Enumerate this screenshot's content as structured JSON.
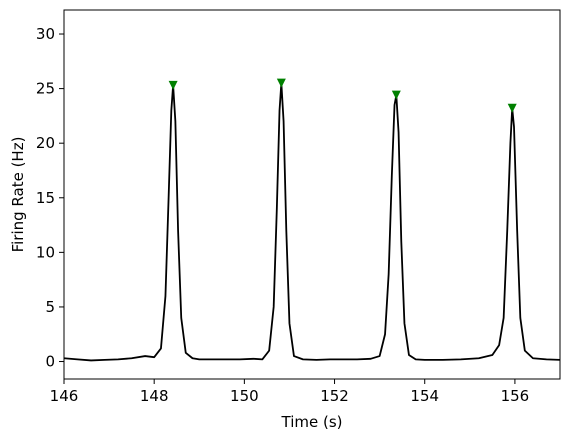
{
  "chart_data": {
    "type": "line",
    "title": "",
    "xlabel": "Time (s)",
    "ylabel": "Firing Rate (Hz)",
    "xlim": [
      146,
      157
    ],
    "ylim": [
      -1.6,
      32.2
    ],
    "xticks": [
      146,
      148,
      150,
      152,
      154,
      156
    ],
    "yticks": [
      0,
      5,
      10,
      15,
      20,
      25,
      30
    ],
    "grid": false,
    "legend": "none",
    "line_color": "#000000",
    "marker_color": "#008000",
    "series": [
      {
        "name": "",
        "x": [
          146.0,
          146.3,
          146.6,
          146.9,
          147.2,
          147.5,
          147.8,
          148.0,
          148.15,
          148.25,
          148.32,
          148.38,
          148.42,
          148.47,
          148.53,
          148.6,
          148.7,
          148.85,
          149.0,
          149.3,
          149.6,
          149.9,
          150.2,
          150.4,
          150.55,
          150.65,
          150.72,
          150.78,
          150.82,
          150.87,
          150.93,
          151.0,
          151.1,
          151.3,
          151.6,
          151.9,
          152.2,
          152.5,
          152.8,
          153.0,
          153.12,
          153.2,
          153.27,
          153.33,
          153.37,
          153.42,
          153.48,
          153.55,
          153.65,
          153.8,
          154.0,
          154.4,
          154.8,
          155.2,
          155.5,
          155.65,
          155.75,
          155.83,
          155.9,
          155.94,
          155.98,
          156.05,
          156.12,
          156.22,
          156.4,
          156.7,
          157.0
        ],
        "y": [
          0.3,
          0.2,
          0.1,
          0.15,
          0.2,
          0.3,
          0.5,
          0.4,
          1.2,
          6.0,
          15.0,
          23.0,
          25.3,
          22.0,
          12.0,
          4.0,
          0.8,
          0.3,
          0.2,
          0.2,
          0.2,
          0.2,
          0.25,
          0.2,
          1.0,
          5.0,
          14.0,
          23.0,
          25.5,
          22.0,
          12.0,
          3.5,
          0.5,
          0.2,
          0.15,
          0.2,
          0.2,
          0.2,
          0.25,
          0.5,
          2.5,
          8.0,
          17.0,
          23.5,
          24.4,
          21.0,
          11.0,
          3.5,
          0.6,
          0.2,
          0.15,
          0.15,
          0.2,
          0.3,
          0.6,
          1.5,
          4.0,
          12.0,
          20.0,
          23.2,
          21.5,
          12.0,
          4.0,
          1.0,
          0.3,
          0.2,
          0.15
        ]
      }
    ],
    "peaks": {
      "x": [
        148.42,
        150.82,
        153.37,
        155.94
      ],
      "y": [
        25.3,
        25.5,
        24.4,
        23.2
      ]
    }
  }
}
